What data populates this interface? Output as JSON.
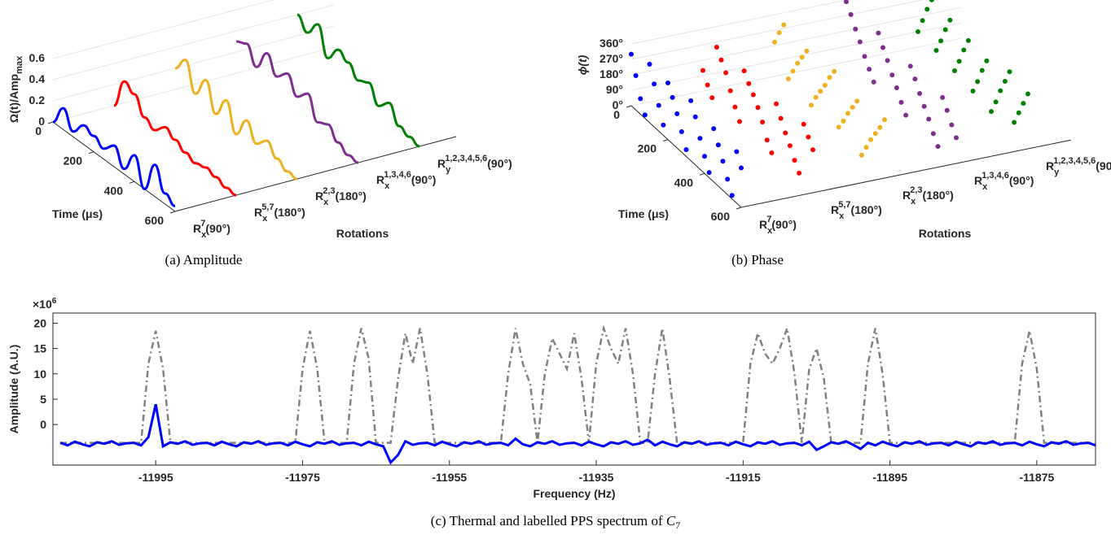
{
  "chart_data": [
    {
      "type": "waterfall3d",
      "caption": "(a) Amplitude",
      "ylabel": {
        "text": "Ω(t)/Amp",
        "sub": "max"
      },
      "xlabel": "Time (μs)",
      "zlabel": "Rotations",
      "x": [
        0,
        50,
        100,
        150,
        200,
        250,
        300,
        350,
        400,
        450,
        500,
        550,
        600
      ],
      "xlim": [
        0,
        600
      ],
      "xticks": [
        0,
        200,
        400,
        600
      ],
      "ylim": [
        0,
        0.6
      ],
      "yticks": [
        0,
        0.2,
        0.4,
        0.6
      ],
      "categories": [
        {
          "base": "R",
          "sub": "x",
          "sup": "7",
          "rest": "(90°)"
        },
        {
          "base": "R",
          "sub": "x",
          "sup": "5,7",
          "rest": "(180°)"
        },
        {
          "base": "R",
          "sub": "x",
          "sup": "2,3",
          "rest": "(180°)"
        },
        {
          "base": "R",
          "sub": "x",
          "sup": "1,3,4,6",
          "rest": "(90°)"
        },
        {
          "base": "R",
          "sub": "y",
          "sup": "1,2,3,4,5,6",
          "rest": "(90°)"
        }
      ],
      "series": [
        {
          "color": "#0000ff",
          "values": [
            0,
            0.2,
            0.05,
            0.18,
            0.15,
            0.1,
            0.2,
            0.05,
            0.25,
            0,
            0.3,
            0.1,
            0.05
          ]
        },
        {
          "color": "#ff0000",
          "values": [
            0,
            0.3,
            0.25,
            0.1,
            0.05,
            0.15,
            0.1,
            0.05,
            0.02,
            0.05,
            0.03,
            0,
            0
          ]
        },
        {
          "color": "#edb120",
          "values": [
            0.2,
            0.35,
            0.1,
            0.3,
            0.05,
            0.25,
            0,
            0.2,
            0.05,
            0.15,
            0.05,
            0,
            0
          ]
        },
        {
          "color": "#7e2f8e",
          "values": [
            0.3,
            0.35,
            0.2,
            0.4,
            0.25,
            0.35,
            0.2,
            0.3,
            0.1,
            0.15,
            0.05,
            0,
            0
          ]
        },
        {
          "color": "#008000",
          "values": [
            0.4,
            0.3,
            0.45,
            0.2,
            0.35,
            0.3,
            0.2,
            0.25,
            0.1,
            0.2,
            0.05,
            0.02,
            0
          ]
        }
      ]
    },
    {
      "type": "dots3d",
      "caption": "(b) Phase",
      "ylabel": "ϕ(t)",
      "xlabel": "Time (μs)",
      "zlabel": "Rotations",
      "x": [
        0,
        25,
        50,
        75,
        100,
        125,
        150,
        175,
        200,
        225,
        250,
        275,
        300,
        325,
        350,
        375,
        400,
        425,
        450,
        475,
        500,
        525,
        550,
        575,
        600
      ],
      "xlim": [
        0,
        600
      ],
      "xticks": [
        0,
        200,
        400,
        600
      ],
      "ylim": [
        0,
        360
      ],
      "yticks": [
        {
          "value": 0,
          "label": "0°"
        },
        {
          "value": 90,
          "label": "90°"
        },
        {
          "value": 180,
          "label": "180°"
        },
        {
          "value": 270,
          "label": "270°"
        },
        {
          "value": 360,
          "label": "360°"
        }
      ],
      "categories": [
        {
          "base": "R",
          "sub": "x",
          "sup": "7",
          "rest": "(90°)"
        },
        {
          "base": "R",
          "sub": "x",
          "sup": "5,7",
          "rest": "(180°)"
        },
        {
          "base": "R",
          "sub": "x",
          "sup": "2,3",
          "rest": "(180°)"
        },
        {
          "base": "R",
          "sub": "x",
          "sup": "1,3,4,6",
          "rest": "(90°)"
        },
        {
          "base": "R",
          "sub": "y",
          "sup": "1,2,3,4,5,6",
          "rest": "(90°)"
        }
      ],
      "series": [
        {
          "color": "#0000ff",
          "values": [
            300,
            200,
            90,
            20,
            340,
            250,
            150,
            60,
            330,
            270,
            200,
            120,
            40,
            350,
            280,
            180,
            100,
            30,
            310,
            240,
            170,
            90,
            20,
            300,
            230
          ]
        },
        {
          "color": "#ff0000",
          "values": [
            120,
            60,
            10,
            330,
            280,
            230,
            150,
            80,
            20,
            340,
            290,
            250,
            200,
            140,
            60,
            10,
            320,
            260,
            200,
            150,
            90,
            40,
            350,
            300,
            250
          ]
        },
        {
          "color": "#edb120",
          "values": [
            200,
            280,
            350,
            60,
            130,
            200,
            260,
            320,
            30,
            100,
            160,
            220,
            290,
            350,
            50,
            110,
            180,
            240,
            300,
            10,
            80,
            150,
            210,
            270,
            340
          ]
        },
        {
          "color": "#7e2f8e",
          "values": [
            350,
            300,
            240,
            190,
            130,
            80,
            30,
            340,
            280,
            230,
            170,
            120,
            60,
            10,
            320,
            270,
            210,
            160,
            110,
            50,
            0,
            310,
            260,
            200,
            150
          ]
        },
        {
          "color": "#008000",
          "values": [
            90,
            180,
            270,
            350,
            80,
            160,
            250,
            330,
            60,
            140,
            230,
            310,
            40,
            120,
            210,
            290,
            20,
            100,
            190,
            270,
            350,
            80,
            160,
            240,
            320
          ]
        }
      ]
    },
    {
      "type": "line",
      "caption": {
        "text": "(c) Thermal and labelled PPS spectrum of ",
        "var": "C",
        "sub": "7"
      },
      "xlabel": "Frequency (Hz)",
      "ylabel": "Amplitude (A.U.)",
      "y_multiplier": {
        "text": "×10",
        "sup": "6"
      },
      "xlim": [
        -12009,
        -11867
      ],
      "xticks": [
        -11995,
        -11975,
        -11955,
        -11935,
        -11915,
        -11895,
        -11875
      ],
      "ylim": [
        -8,
        22
      ],
      "yticks": [
        0,
        5,
        10,
        15,
        20
      ],
      "x": [
        -12008,
        -12007,
        -12006,
        -12005,
        -12004,
        -12003,
        -12002,
        -12001,
        -12000,
        -11999,
        -11998,
        -11997,
        -11996,
        -11995,
        -11994,
        -11993,
        -11992,
        -11991,
        -11990,
        -11989,
        -11988,
        -11987,
        -11986,
        -11985,
        -11984,
        -11983,
        -11982,
        -11981,
        -11980,
        -11979,
        -11978,
        -11977,
        -11976,
        -11975,
        -11974,
        -11973,
        -11972,
        -11971,
        -11970,
        -11969,
        -11968,
        -11967,
        -11966,
        -11965,
        -11964,
        -11963,
        -11962,
        -11961,
        -11960,
        -11959,
        -11958,
        -11957,
        -11956,
        -11955,
        -11954,
        -11953,
        -11952,
        -11951,
        -11950,
        -11949,
        -11948,
        -11947,
        -11946,
        -11945,
        -11944,
        -11943,
        -11942,
        -11941,
        -11940,
        -11939,
        -11938,
        -11937,
        -11936,
        -11935,
        -11934,
        -11933,
        -11932,
        -11931,
        -11930,
        -11929,
        -11928,
        -11927,
        -11926,
        -11925,
        -11924,
        -11923,
        -11922,
        -11921,
        -11920,
        -11919,
        -11918,
        -11917,
        -11916,
        -11915,
        -11914,
        -11913,
        -11912,
        -11911,
        -11910,
        -11909,
        -11908,
        -11907,
        -11906,
        -11905,
        -11904,
        -11903,
        -11902,
        -11901,
        -11900,
        -11899,
        -11898,
        -11897,
        -11896,
        -11895,
        -11894,
        -11893,
        -11892,
        -11891,
        -11890,
        -11889,
        -11888,
        -11887,
        -11886,
        -11885,
        -11884,
        -11883,
        -11882,
        -11881,
        -11880,
        -11879,
        -11878,
        -11877,
        -11876,
        -11875,
        -11874,
        -11873,
        -11872,
        -11871,
        -11870,
        -11869,
        -11868,
        -11867
      ],
      "series": [
        {
          "color": "#808080",
          "dashed": true,
          "values": [
            -3.6,
            -3.6,
            -3.6,
            -3.6,
            -3.6,
            -3.6,
            -3.6,
            -3.6,
            -3.6,
            -3.6,
            -3.6,
            -3.6,
            12,
            18.5,
            11,
            -3.6,
            -3.6,
            -3.6,
            -3.6,
            -3.6,
            -3.6,
            -3.6,
            -3.6,
            -3.6,
            -3.6,
            -3.6,
            -3.6,
            -3.6,
            -3.6,
            -3.6,
            -3.6,
            -3.6,
            -3.6,
            11,
            18.5,
            11,
            -3.6,
            -3.6,
            -3.6,
            -3.6,
            12,
            19,
            13,
            -3.6,
            -3.6,
            -3.6,
            9,
            18,
            12,
            19,
            10,
            -3.6,
            -3.6,
            -3.6,
            -3.6,
            -3.6,
            -3.6,
            -3.6,
            -3.6,
            -3.6,
            -3.6,
            10,
            19,
            12,
            8,
            -3.6,
            10,
            17,
            14,
            11,
            18,
            9,
            -3.6,
            12,
            19,
            15,
            12,
            19,
            10,
            -3.6,
            -3.6,
            10,
            19,
            9,
            -3.6,
            -3.6,
            -3.6,
            -3.6,
            -3.6,
            -3.6,
            -3.6,
            -3.6,
            -3.6,
            -3.6,
            12,
            18,
            14,
            12,
            15,
            19,
            10,
            -3.6,
            11,
            15,
            9,
            -3.6,
            -3.6,
            -3.6,
            -3.6,
            -3.6,
            12,
            19,
            10,
            -3.6,
            -3.6,
            -3.6,
            -3.6,
            -3.6,
            -3.6,
            -3.6,
            -3.6,
            -3.6,
            -3.6,
            -3.6,
            -3.6,
            -3.6,
            -3.6,
            -3.6,
            -3.6,
            -3.6,
            -3.6,
            12,
            18.5,
            11,
            -3.6,
            -3.6,
            -3.6,
            -3.6,
            -3.6,
            -3.6,
            -3.6,
            -3.6
          ]
        },
        {
          "color": "#0000ff",
          "dashed": false,
          "values": [
            -3.6,
            -4.1,
            -3.4,
            -3.9,
            -4.3,
            -3.5,
            -3.8,
            -3.3,
            -4,
            -3.7,
            -3.6,
            -4.1,
            -2.5,
            4,
            -4.3,
            -3.5,
            -3.8,
            -3.3,
            -4,
            -3.7,
            -3.6,
            -4.1,
            -3.4,
            -3.9,
            -4.3,
            -3.5,
            -3.8,
            -3.3,
            -4,
            -3.7,
            -3.6,
            -4.1,
            -3.4,
            -3.9,
            -4.3,
            -3.5,
            -3.8,
            -3.3,
            -4,
            -3.7,
            -3.6,
            -4.1,
            -3.4,
            -3.9,
            -4.3,
            -7.5,
            -6,
            -3.3,
            -4,
            -3.7,
            -3.6,
            -4.1,
            -3.4,
            -3.9,
            -4.3,
            -3.5,
            -3.8,
            -3.3,
            -4,
            -3.7,
            -3.6,
            -4.1,
            -2.8,
            -3.9,
            -4.3,
            -3.5,
            -3.8,
            -3.3,
            -4,
            -3.7,
            -3.6,
            -4.1,
            -3.4,
            -3.9,
            -4.3,
            -3.5,
            -3.8,
            -3.3,
            -4,
            -3.7,
            -3,
            -4.1,
            -3.4,
            -3.9,
            -4.3,
            -3.5,
            -3.8,
            -3.3,
            -4,
            -3.7,
            -3.6,
            -4.1,
            -3.4,
            -3.9,
            -4.3,
            -3.5,
            -3.8,
            -3.3,
            -4,
            -3.7,
            -3.6,
            -4.1,
            -3.4,
            -5,
            -4.3,
            -3.5,
            -3.8,
            -3.3,
            -4,
            -4.8,
            -3.6,
            -4.1,
            -3.4,
            -3.9,
            -4.3,
            -3.5,
            -3.8,
            -3.3,
            -4,
            -3.7,
            -3.6,
            -4.1,
            -3.4,
            -3.9,
            -4.3,
            -3.5,
            -3.8,
            -3.3,
            -4,
            -3.7,
            -3.6,
            -4.1,
            -3.4,
            -3.9,
            -4.3,
            -3.5,
            -3.8,
            -3.3,
            -4,
            -3.7,
            -3.6,
            -4.1
          ]
        }
      ]
    }
  ]
}
